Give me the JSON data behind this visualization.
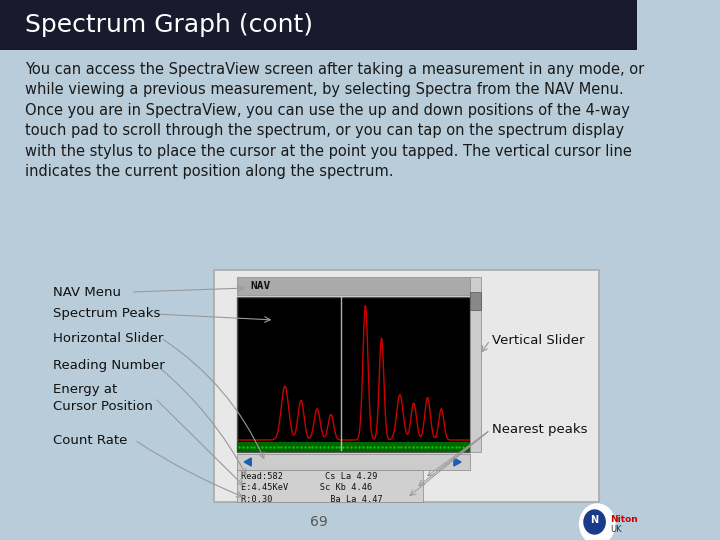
{
  "title": "Spectrum Graph (cont)",
  "title_bg": "#1a1a2e",
  "title_color": "#ffffff",
  "title_fontsize": 18,
  "body_bg": "#b8cdd9",
  "body_text": "You can access the SpectraView screen after taking a measurement in any mode, or\nwhile viewing a previous measurement, by selecting Spectra from the NAV Menu.\nOnce you are in SpectraView, you can use the up and down positions of the 4-way\ntouch pad to scroll through the spectrum, or you can tap on the spectrum display\nwith the stylus to place the cursor at the point you tapped. The vertical cursor line\nindicates the current position along the spectrum.",
  "body_text_fontsize": 10.5,
  "body_text_color": "#1a1a1a",
  "page_number": "69",
  "screen_bg": "#000000",
  "nav_text": "NAV",
  "spectrum_color": "#cc0000",
  "label_fontsize": 9.5,
  "footer_color": "#555555",
  "arrow_color": "#999999"
}
